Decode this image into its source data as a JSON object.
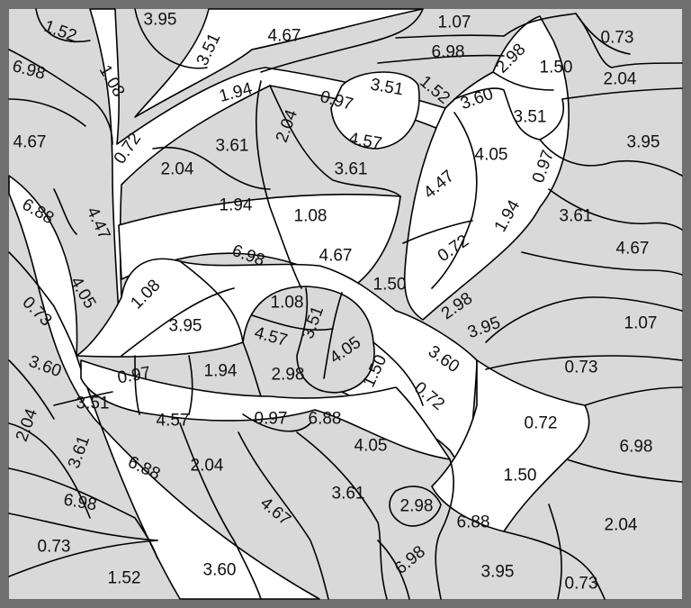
{
  "puzzle": {
    "type": "color-by-number",
    "colors": {
      "frame": "#6f6f6f",
      "background": "#d9d9d9",
      "band": "#ffffff",
      "line": "#000000"
    },
    "numbers": [
      {
        "text": "1.52",
        "angle": 20
      },
      {
        "text": "3.95",
        "angle": 0
      },
      {
        "text": "3.51",
        "angle": -65
      },
      {
        "text": "4.67",
        "angle": 0
      },
      {
        "text": "1.07",
        "angle": 0
      },
      {
        "text": "6.98",
        "angle": 0
      },
      {
        "text": "2.98",
        "angle": -45
      },
      {
        "text": "0.73",
        "angle": 0
      },
      {
        "text": "6.98",
        "angle": 15
      },
      {
        "text": "1.08",
        "angle": 60
      },
      {
        "text": "1.94",
        "angle": -15
      },
      {
        "text": "0.97",
        "angle": 15
      },
      {
        "text": "3.51",
        "angle": 10
      },
      {
        "text": "1.52",
        "angle": 40
      },
      {
        "text": "1.50",
        "angle": 0
      },
      {
        "text": "2.04",
        "angle": 0
      },
      {
        "text": "3.60",
        "angle": -20
      },
      {
        "text": "4.67",
        "angle": 0
      },
      {
        "text": "0.72",
        "angle": -55
      },
      {
        "text": "3.61",
        "angle": 0
      },
      {
        "text": "2.04",
        "angle": -70
      },
      {
        "text": "4.57",
        "angle": 10
      },
      {
        "text": "3.51",
        "angle": 0
      },
      {
        "text": "3.95",
        "angle": 0
      },
      {
        "text": "2.04",
        "angle": 0
      },
      {
        "text": "3.61",
        "angle": 0
      },
      {
        "text": "4.05",
        "angle": 0
      },
      {
        "text": "4.47",
        "angle": -40
      },
      {
        "text": "0.97",
        "angle": -70
      },
      {
        "text": "6.88",
        "angle": 30
      },
      {
        "text": "4.47",
        "angle": 65
      },
      {
        "text": "1.94",
        "angle": 0
      },
      {
        "text": "1.08",
        "angle": 0
      },
      {
        "text": "1.94",
        "angle": -60
      },
      {
        "text": "3.61",
        "angle": 0
      },
      {
        "text": "6.98",
        "angle": 20
      },
      {
        "text": "4.67",
        "angle": 0
      },
      {
        "text": "0.72",
        "angle": -35
      },
      {
        "text": "4.67",
        "angle": 0
      },
      {
        "text": "4.05",
        "angle": 60
      },
      {
        "text": "1.08",
        "angle": -45
      },
      {
        "text": "1.08",
        "angle": 0
      },
      {
        "text": "1.50",
        "angle": 0
      },
      {
        "text": "2.98",
        "angle": -35
      },
      {
        "text": "0.73",
        "angle": 45
      },
      {
        "text": "3.95",
        "angle": 0
      },
      {
        "text": "4.57",
        "angle": 15
      },
      {
        "text": "3.51",
        "angle": -70
      },
      {
        "text": "4.05",
        "angle": -35
      },
      {
        "text": "3.95",
        "angle": -20
      },
      {
        "text": "1.07",
        "angle": 0
      },
      {
        "text": "3.60",
        "angle": 20
      },
      {
        "text": "0.97",
        "angle": -10
      },
      {
        "text": "1.94",
        "angle": 0
      },
      {
        "text": "2.98",
        "angle": 0
      },
      {
        "text": "1.50",
        "angle": -65
      },
      {
        "text": "3.60",
        "angle": 35
      },
      {
        "text": "0.73",
        "angle": 0
      },
      {
        "text": "0.72",
        "angle": 40
      },
      {
        "text": "3.51",
        "angle": 0
      },
      {
        "text": "2.04",
        "angle": -70
      },
      {
        "text": "4.57",
        "angle": 0
      },
      {
        "text": "0.97",
        "angle": 0
      },
      {
        "text": "6.88",
        "angle": 0
      },
      {
        "text": "3.61",
        "angle": -70
      },
      {
        "text": "4.05",
        "angle": 0
      },
      {
        "text": "0.72",
        "angle": 0
      },
      {
        "text": "6.98",
        "angle": 0
      },
      {
        "text": "6.88",
        "angle": 25
      },
      {
        "text": "2.04",
        "angle": 0
      },
      {
        "text": "1.50",
        "angle": 0
      },
      {
        "text": "6.98",
        "angle": 10
      },
      {
        "text": "4.67",
        "angle": 40
      },
      {
        "text": "3.61",
        "angle": 0
      },
      {
        "text": "2.98",
        "angle": 0
      },
      {
        "text": "6.88",
        "angle": 0
      },
      {
        "text": "2.04",
        "angle": 0
      },
      {
        "text": "0.73",
        "angle": 0
      },
      {
        "text": "1.52",
        "angle": 0
      },
      {
        "text": "3.60",
        "angle": 0
      },
      {
        "text": "6.98",
        "angle": -40
      },
      {
        "text": "3.95",
        "angle": 0
      },
      {
        "text": "0.73",
        "angle": 0
      }
    ]
  }
}
